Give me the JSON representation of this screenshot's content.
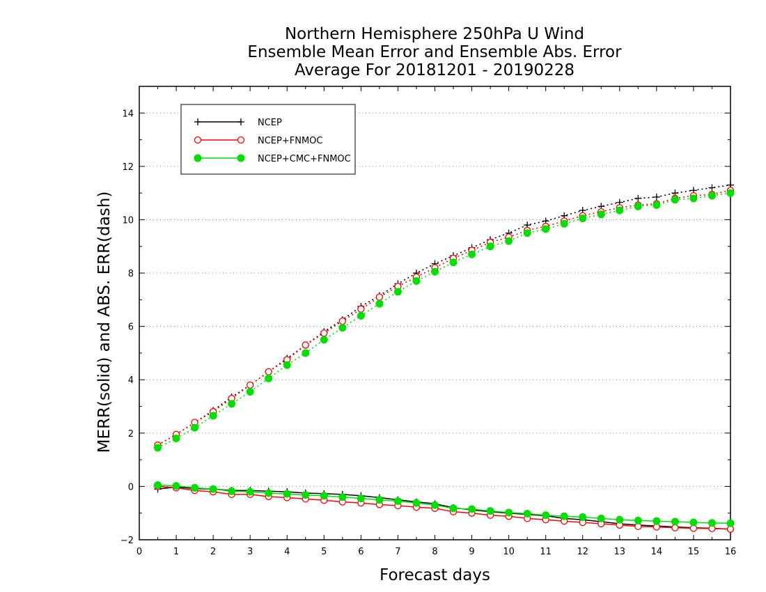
{
  "chart_data": {
    "type": "line",
    "title_lines": [
      "Northern Hemisphere 250hPa U Wind",
      "Ensemble Mean Error and Ensemble Abs. Error",
      "Average For 20181201 - 20190228"
    ],
    "xlabel": "Forecast days",
    "ylabel": "MERR(solid) and ABS. ERR(dash)",
    "xlim": [
      0,
      16
    ],
    "ylim": [
      -2,
      15
    ],
    "x_ticks": [
      "0",
      "1",
      "2",
      "3",
      "4",
      "5",
      "6",
      "7",
      "8",
      "9",
      "10",
      "11",
      "12",
      "13",
      "14",
      "15",
      "16"
    ],
    "y_ticks": [
      "-2",
      "0",
      "2",
      "4",
      "6",
      "8",
      "10",
      "12",
      "14"
    ],
    "grid": true,
    "legend_position": "top-left",
    "x": [
      0.5,
      1,
      1.5,
      2,
      2.5,
      3,
      3.5,
      4,
      4.5,
      5,
      5.5,
      6,
      6.5,
      7,
      7.5,
      8,
      8.5,
      9,
      9.5,
      10,
      10.5,
      11,
      11.5,
      12,
      12.5,
      13,
      13.5,
      14,
      14.5,
      15,
      15.5,
      16
    ],
    "series": [
      {
        "name": "NCEP",
        "color": "#000000",
        "marker": "plus",
        "merr": [
          -0.1,
          -0.02,
          -0.08,
          -0.1,
          -0.15,
          -0.15,
          -0.18,
          -0.2,
          -0.25,
          -0.27,
          -0.3,
          -0.35,
          -0.42,
          -0.5,
          -0.58,
          -0.65,
          -0.8,
          -0.88,
          -0.95,
          -1.0,
          -1.05,
          -1.1,
          -1.2,
          -1.25,
          -1.32,
          -1.4,
          -1.45,
          -1.48,
          -1.52,
          -1.55,
          -1.57,
          -1.6
        ],
        "abs_err": [
          1.55,
          1.95,
          2.4,
          2.85,
          3.35,
          3.8,
          4.3,
          4.8,
          5.3,
          5.8,
          6.25,
          6.75,
          7.15,
          7.6,
          8.0,
          8.35,
          8.65,
          8.95,
          9.25,
          9.5,
          9.8,
          9.95,
          10.15,
          10.35,
          10.5,
          10.65,
          10.8,
          10.85,
          11.0,
          11.1,
          11.2,
          11.3
        ]
      },
      {
        "name": "NCEP+FNMOC",
        "color": "#ff0000",
        "marker": "open-circle",
        "merr": [
          0.0,
          -0.05,
          -0.15,
          -0.2,
          -0.3,
          -0.3,
          -0.38,
          -0.42,
          -0.47,
          -0.52,
          -0.58,
          -0.62,
          -0.68,
          -0.72,
          -0.78,
          -0.82,
          -0.95,
          -1.0,
          -1.08,
          -1.12,
          -1.2,
          -1.25,
          -1.3,
          -1.35,
          -1.4,
          -1.45,
          -1.5,
          -1.52,
          -1.55,
          -1.57,
          -1.58,
          -1.6
        ],
        "abs_err": [
          1.55,
          1.95,
          2.4,
          2.8,
          3.3,
          3.8,
          4.3,
          4.75,
          5.3,
          5.75,
          6.2,
          6.65,
          7.1,
          7.5,
          7.85,
          8.2,
          8.55,
          8.85,
          9.15,
          9.35,
          9.6,
          9.75,
          9.95,
          10.15,
          10.3,
          10.45,
          10.55,
          10.6,
          10.8,
          10.9,
          10.95,
          11.1
        ]
      },
      {
        "name": "NCEP+CMC+FNMOC",
        "color": "#00dd00",
        "marker": "filled-circle",
        "merr": [
          0.05,
          0.02,
          -0.05,
          -0.1,
          -0.18,
          -0.2,
          -0.25,
          -0.28,
          -0.32,
          -0.35,
          -0.4,
          -0.45,
          -0.5,
          -0.55,
          -0.62,
          -0.7,
          -0.82,
          -0.85,
          -0.92,
          -0.98,
          -1.02,
          -1.08,
          -1.12,
          -1.15,
          -1.2,
          -1.25,
          -1.28,
          -1.3,
          -1.32,
          -1.35,
          -1.37,
          -1.38
        ],
        "abs_err": [
          1.45,
          1.8,
          2.2,
          2.65,
          3.1,
          3.55,
          4.05,
          4.55,
          5.0,
          5.5,
          5.95,
          6.4,
          6.85,
          7.3,
          7.7,
          8.05,
          8.4,
          8.7,
          9.0,
          9.2,
          9.5,
          9.65,
          9.85,
          10.05,
          10.2,
          10.35,
          10.5,
          10.55,
          10.75,
          10.8,
          10.9,
          11.0
        ]
      }
    ]
  }
}
